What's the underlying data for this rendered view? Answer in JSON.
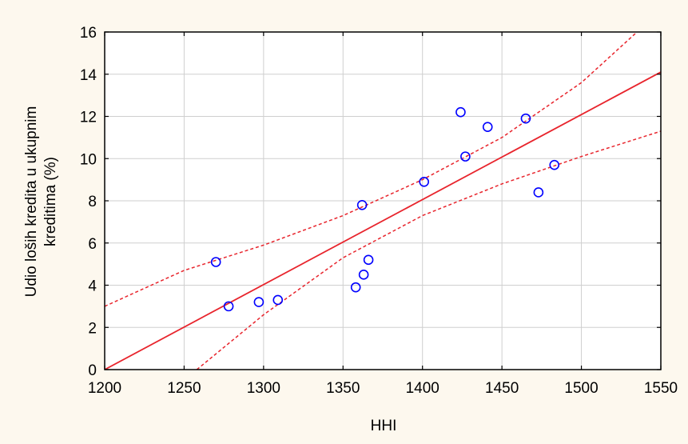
{
  "chart_data": {
    "type": "scatter",
    "title": "",
    "xlabel": "HHI",
    "ylabel_lines": [
      "Udio loših kredita u ukupnim",
      "kreditima (%)"
    ],
    "xlim": [
      1200,
      1550
    ],
    "ylim": [
      0,
      16
    ],
    "xticks": [
      1200,
      1250,
      1300,
      1350,
      1400,
      1450,
      1500,
      1550
    ],
    "yticks": [
      0,
      2,
      4,
      6,
      8,
      10,
      12,
      14,
      16
    ],
    "grid": true,
    "series": [
      {
        "kind": "points",
        "marker": "circle",
        "color": "#0000ff",
        "x": [
          1270,
          1278,
          1297,
          1309,
          1358,
          1362,
          1363,
          1366,
          1401,
          1424,
          1427,
          1441,
          1465,
          1473,
          1483
        ],
        "y": [
          5.1,
          3.0,
          3.2,
          3.3,
          3.9,
          7.8,
          4.5,
          5.2,
          8.9,
          12.2,
          10.1,
          11.5,
          11.9,
          8.4,
          9.7
        ]
      },
      {
        "kind": "fit-line",
        "color": "#e8242c",
        "x": [
          1200,
          1550
        ],
        "y": [
          0.0,
          14.1
        ]
      },
      {
        "kind": "upper-confidence-band",
        "color": "#e8242c",
        "dashed": true,
        "x": [
          1200,
          1250,
          1300,
          1350,
          1400,
          1450,
          1500,
          1535
        ],
        "y": [
          3.0,
          4.7,
          5.9,
          7.3,
          9.0,
          11.0,
          13.6,
          16.0
        ]
      },
      {
        "kind": "lower-confidence-band",
        "color": "#e8242c",
        "dashed": true,
        "x": [
          1258,
          1300,
          1350,
          1400,
          1450,
          1500,
          1550
        ],
        "y": [
          0.0,
          2.6,
          5.3,
          7.3,
          8.8,
          10.1,
          11.3
        ]
      }
    ]
  }
}
